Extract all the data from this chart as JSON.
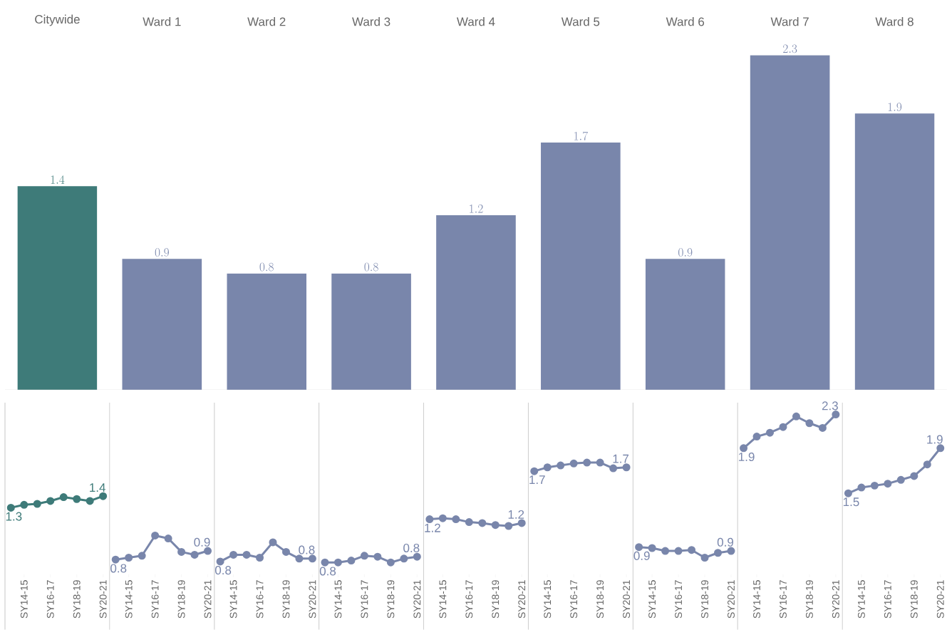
{
  "chart_data": [
    {
      "type": "bar",
      "categories": [
        "Citywide",
        "Ward 1",
        "Ward 2",
        "Ward 3",
        "Ward 4",
        "Ward 5",
        "Ward 6",
        "Ward 7",
        "Ward 8"
      ],
      "values": [
        1.4,
        0.9,
        0.8,
        0.8,
        1.2,
        1.7,
        0.9,
        2.3,
        1.9
      ],
      "colors": [
        "#3e7b79",
        "#7986ab",
        "#7986ab",
        "#7986ab",
        "#7986ab",
        "#7986ab",
        "#7986ab",
        "#7986ab",
        "#7986ab"
      ],
      "data_labels": true
    },
    {
      "type": "line",
      "categories": [
        null,
        "SY14-15",
        null,
        "SY16-17",
        null,
        "SY18-19",
        null,
        "SY20-21"
      ],
      "series": [
        {
          "color": "#3e7b79",
          "values": [
            1.32,
            1.35,
            1.36,
            1.39,
            1.43,
            1.41,
            1.39,
            1.44
          ],
          "value_labels": [
            "1.3",
            null,
            null,
            null,
            null,
            null,
            null,
            "1.4"
          ]
        }
      ],
      "marker": "circle",
      "tick_labels": "x"
    },
    {
      "type": "line",
      "categories": [
        null,
        "SY14-15",
        null,
        "SY16-17",
        null,
        "SY18-19",
        null,
        "SY20-21"
      ],
      "series": [
        {
          "color": "#7986ab",
          "values": [
            0.78,
            0.8,
            0.82,
            1.03,
            1.0,
            0.86,
            0.83,
            0.87
          ],
          "value_labels": [
            "0.8",
            null,
            null,
            null,
            null,
            null,
            null,
            "0.9"
          ]
        }
      ],
      "marker": "circle",
      "tick_labels": "x"
    },
    {
      "type": "line",
      "categories": [
        null,
        "SY14-15",
        null,
        "SY16-17",
        null,
        "SY18-19",
        null,
        "SY20-21"
      ],
      "series": [
        {
          "color": "#7986ab",
          "values": [
            0.76,
            0.83,
            0.83,
            0.8,
            0.96,
            0.86,
            0.79,
            0.79
          ],
          "value_labels": [
            "0.8",
            null,
            null,
            null,
            null,
            null,
            null,
            "0.8"
          ]
        }
      ],
      "marker": "circle",
      "tick_labels": "x"
    },
    {
      "type": "line",
      "categories": [
        null,
        "SY14-15",
        null,
        "SY16-17",
        null,
        "SY18-19",
        null,
        "SY20-21"
      ],
      "series": [
        {
          "color": "#7986ab",
          "values": [
            0.75,
            0.75,
            0.77,
            0.82,
            0.81,
            0.75,
            0.79,
            0.81
          ],
          "value_labels": [
            "0.8",
            null,
            null,
            null,
            null,
            null,
            null,
            "0.8"
          ]
        }
      ],
      "marker": "circle",
      "tick_labels": "x"
    },
    {
      "type": "line",
      "categories": [
        null,
        "SY14-15",
        null,
        "SY16-17",
        null,
        "SY18-19",
        null,
        "SY20-21"
      ],
      "series": [
        {
          "color": "#7986ab",
          "values": [
            1.2,
            1.21,
            1.2,
            1.17,
            1.16,
            1.14,
            1.13,
            1.16
          ],
          "value_labels": [
            "1.2",
            null,
            null,
            null,
            null,
            null,
            null,
            "1.2"
          ]
        }
      ],
      "marker": "circle",
      "tick_labels": "x"
    },
    {
      "type": "line",
      "categories": [
        null,
        "SY14-15",
        null,
        "SY16-17",
        null,
        "SY18-19",
        null,
        "SY20-21"
      ],
      "series": [
        {
          "color": "#7986ab",
          "values": [
            1.7,
            1.74,
            1.76,
            1.78,
            1.79,
            1.79,
            1.73,
            1.74
          ],
          "value_labels": [
            "1.7",
            null,
            null,
            null,
            null,
            null,
            null,
            "1.7"
          ]
        }
      ],
      "marker": "circle",
      "tick_labels": "x"
    },
    {
      "type": "line",
      "categories": [
        null,
        "SY14-15",
        null,
        "SY16-17",
        null,
        "SY18-19",
        null,
        "SY20-21"
      ],
      "series": [
        {
          "color": "#7986ab",
          "values": [
            0.91,
            0.9,
            0.87,
            0.87,
            0.88,
            0.8,
            0.85,
            0.87
          ],
          "value_labels": [
            "0.9",
            null,
            null,
            null,
            null,
            null,
            null,
            "0.9"
          ]
        }
      ],
      "marker": "circle",
      "tick_labels": "x"
    },
    {
      "type": "line",
      "categories": [
        null,
        "SY14-15",
        null,
        "SY16-17",
        null,
        "SY18-19",
        null,
        "SY20-21"
      ],
      "series": [
        {
          "color": "#7986ab",
          "values": [
            1.94,
            2.06,
            2.1,
            2.16,
            2.27,
            2.2,
            2.15,
            2.29
          ],
          "value_labels": [
            "1.9",
            null,
            null,
            null,
            null,
            null,
            null,
            "2.3"
          ]
        }
      ],
      "marker": "circle",
      "tick_labels": "x"
    },
    {
      "type": "line",
      "categories": [
        null,
        "SY14-15",
        null,
        "SY16-17",
        null,
        "SY18-19",
        null,
        "SY20-21"
      ],
      "series": [
        {
          "color": "#7986ab",
          "values": [
            1.47,
            1.53,
            1.55,
            1.57,
            1.61,
            1.65,
            1.77,
            1.94
          ],
          "value_labels": [
            "1.5",
            null,
            null,
            null,
            null,
            null,
            null,
            "1.9"
          ]
        }
      ],
      "marker": "circle",
      "tick_labels": "x"
    }
  ]
}
